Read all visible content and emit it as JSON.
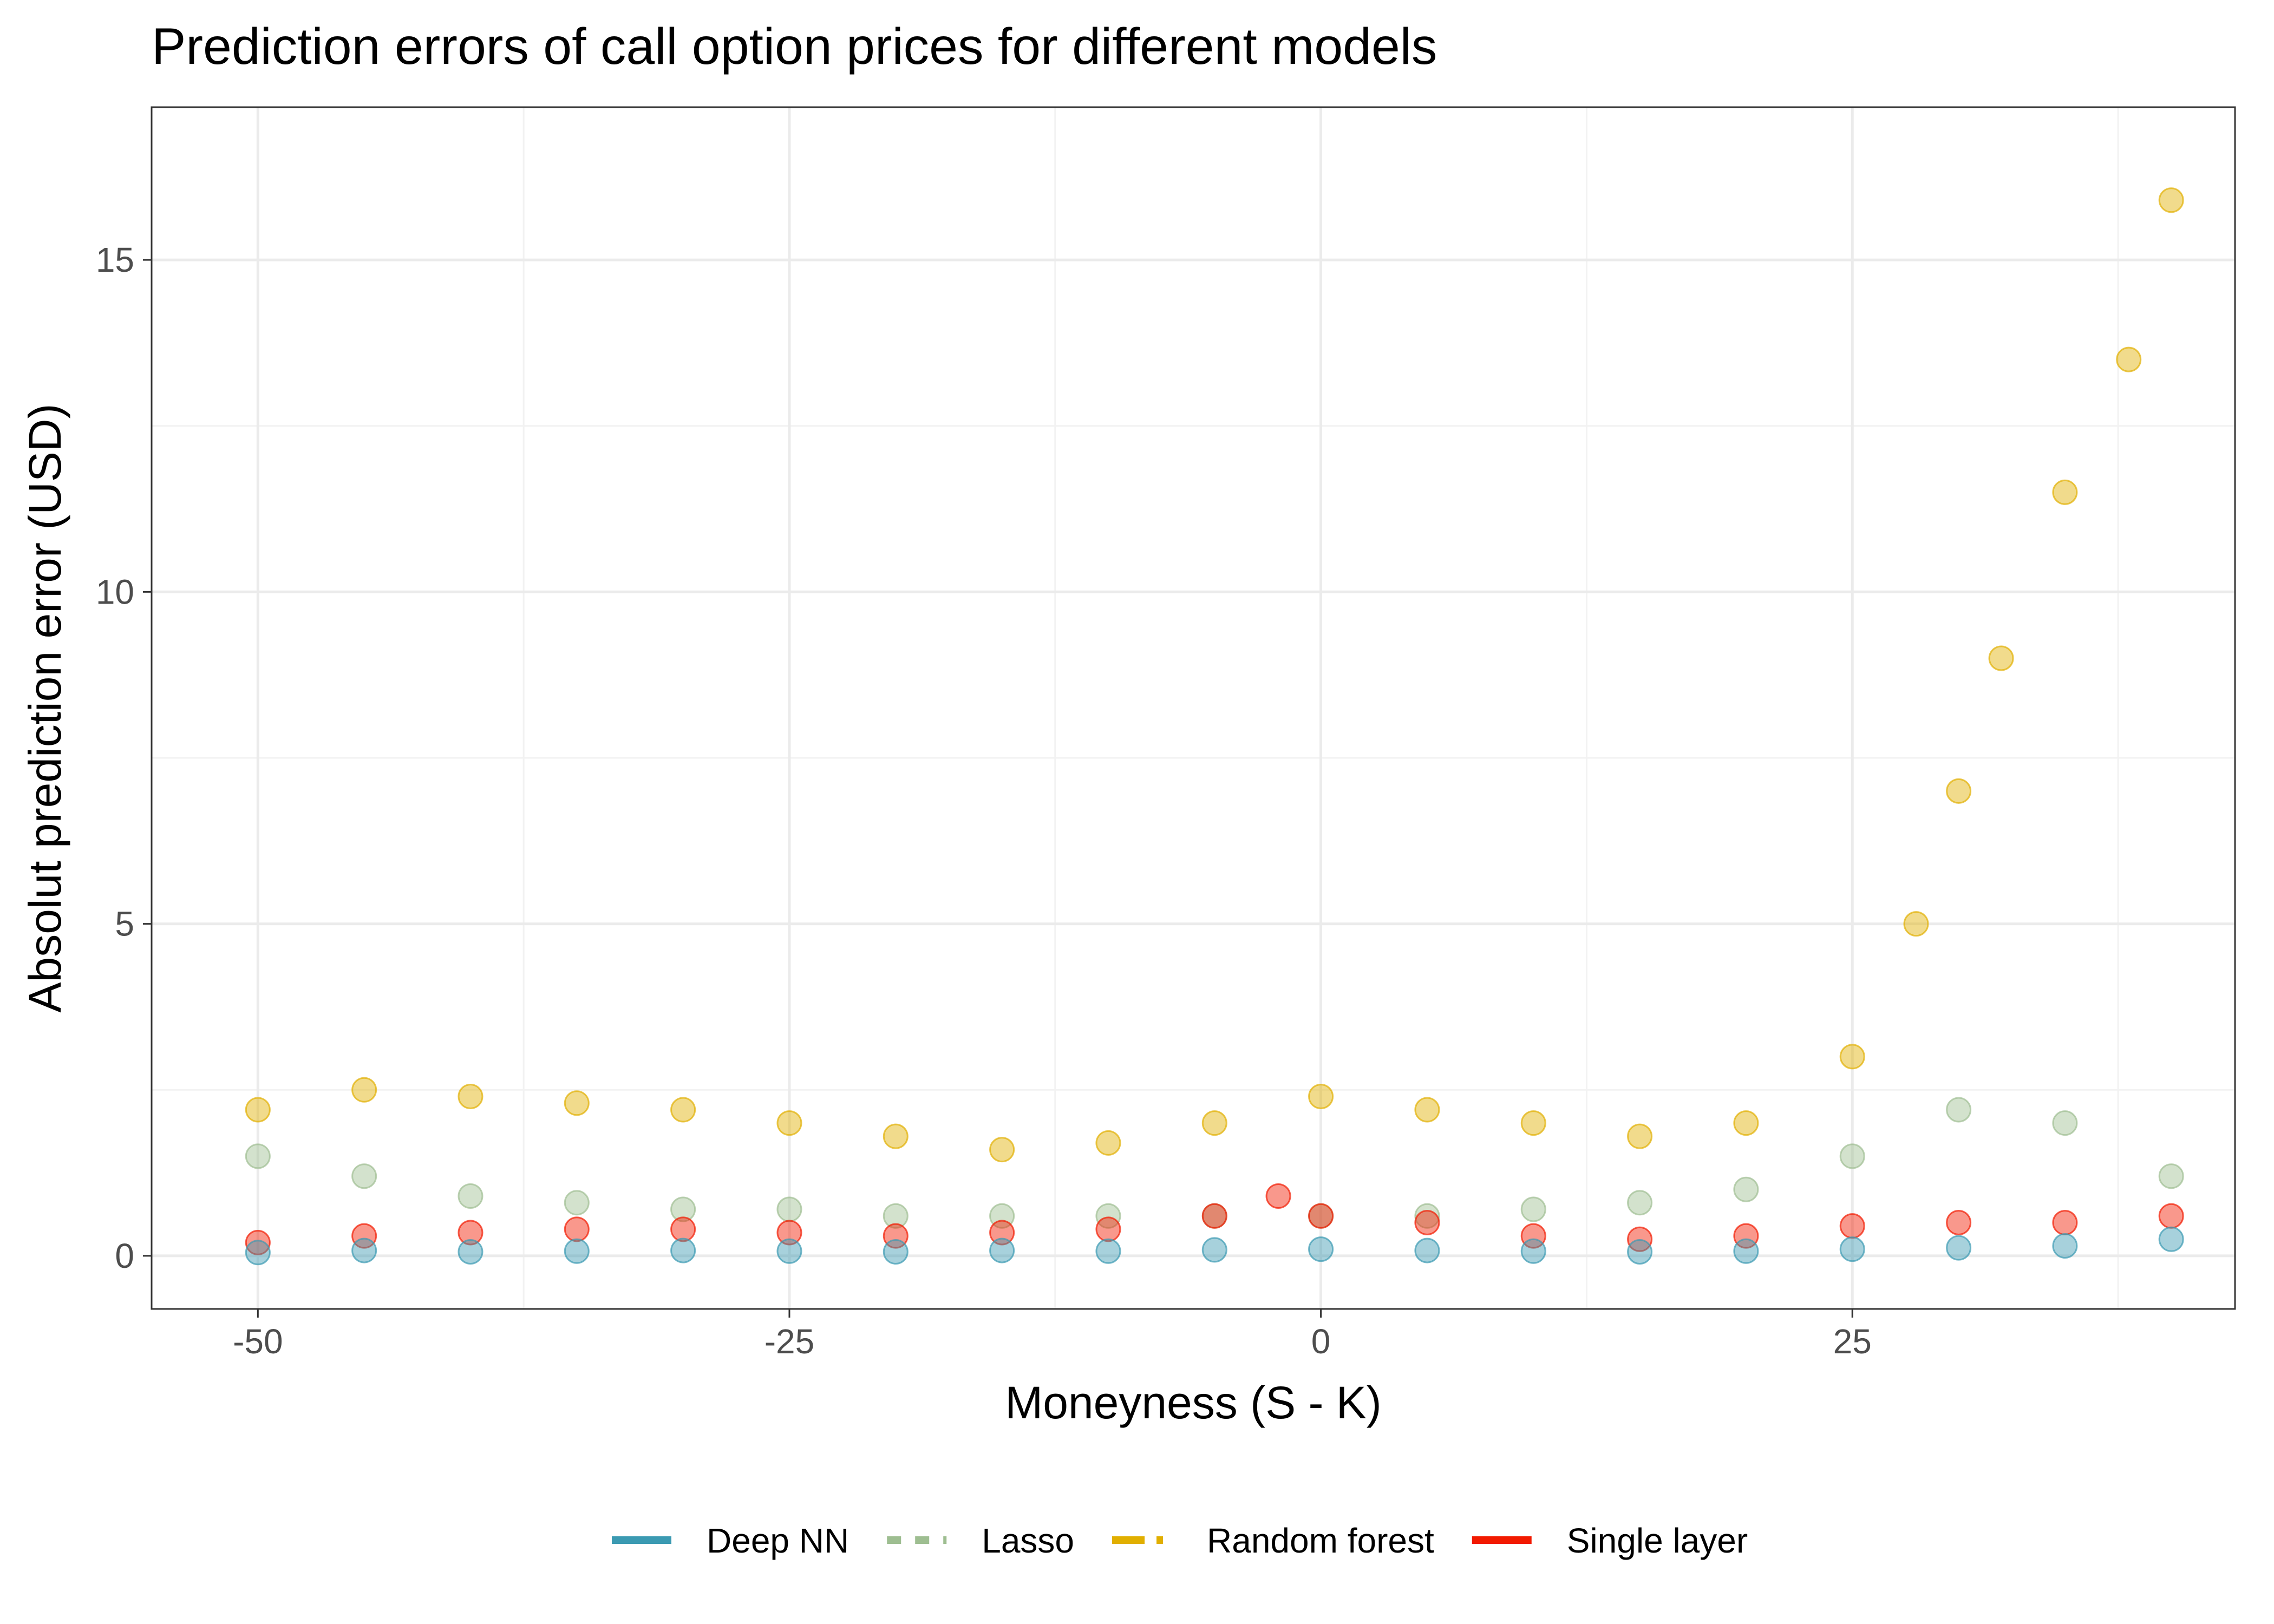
{
  "chart_data": {
    "type": "scatter",
    "title": "Prediction errors of call option prices for different models",
    "xlabel": "Moneyness (S - K)",
    "ylabel": "Absolut prediction error (USD)",
    "xlim": [
      -55,
      43
    ],
    "ylim": [
      -0.8,
      17.3
    ],
    "x_ticks": [
      -50,
      -25,
      0,
      25
    ],
    "x_tick_labels": [
      "-50",
      "-25",
      "0",
      "25"
    ],
    "y_ticks": [
      0,
      5,
      10,
      15
    ],
    "y_tick_labels": [
      "0",
      "5",
      "10",
      "15"
    ],
    "grid": true,
    "legend_position": "bottom",
    "series": [
      {
        "name": "Deep NN",
        "color": "#3B9AB2",
        "line_style": "solid",
        "points": [
          [
            -50,
            0.05
          ],
          [
            -45,
            0.08
          ],
          [
            -40,
            0.06
          ],
          [
            -35,
            0.07
          ],
          [
            -30,
            0.08
          ],
          [
            -25,
            0.07
          ],
          [
            -20,
            0.06
          ],
          [
            -15,
            0.08
          ],
          [
            -10,
            0.07
          ],
          [
            -5,
            0.09
          ],
          [
            0,
            0.1
          ],
          [
            5,
            0.08
          ],
          [
            10,
            0.07
          ],
          [
            15,
            0.06
          ],
          [
            20,
            0.07
          ],
          [
            25,
            0.1
          ],
          [
            30,
            0.12
          ],
          [
            35,
            0.15
          ],
          [
            40,
            0.25
          ]
        ]
      },
      {
        "name": "Lasso",
        "color": "#9EBE91",
        "line_style": "dashed",
        "points": [
          [
            -50,
            1.5
          ],
          [
            -45,
            1.2
          ],
          [
            -40,
            0.9
          ],
          [
            -35,
            0.8
          ],
          [
            -30,
            0.7
          ],
          [
            -25,
            0.7
          ],
          [
            -20,
            0.6
          ],
          [
            -15,
            0.6
          ],
          [
            -10,
            0.6
          ],
          [
            -5,
            0.6
          ],
          [
            0,
            0.6
          ],
          [
            5,
            0.6
          ],
          [
            10,
            0.7
          ],
          [
            15,
            0.8
          ],
          [
            20,
            1.0
          ],
          [
            25,
            1.5
          ],
          [
            30,
            2.2
          ],
          [
            35,
            2.0
          ],
          [
            40,
            1.2
          ]
        ]
      },
      {
        "name": "Random forest",
        "color": "#E1AF00",
        "line_style": "dotdash",
        "points": [
          [
            -50,
            2.2
          ],
          [
            -45,
            2.5
          ],
          [
            -40,
            2.4
          ],
          [
            -35,
            2.3
          ],
          [
            -30,
            2.2
          ],
          [
            -25,
            2.0
          ],
          [
            -20,
            1.8
          ],
          [
            -15,
            1.6
          ],
          [
            -10,
            1.7
          ],
          [
            -5,
            2.0
          ],
          [
            0,
            2.4
          ],
          [
            5,
            2.2
          ],
          [
            10,
            2.0
          ],
          [
            15,
            1.8
          ],
          [
            20,
            2.0
          ],
          [
            25,
            3.0
          ],
          [
            28,
            5.0
          ],
          [
            30,
            7.0
          ],
          [
            32,
            9.0
          ],
          [
            35,
            11.5
          ],
          [
            38,
            13.5
          ],
          [
            40,
            15.9
          ]
        ]
      },
      {
        "name": "Single layer",
        "color": "#F21A00",
        "line_style": "solid",
        "points": [
          [
            -50,
            0.2
          ],
          [
            -45,
            0.3
          ],
          [
            -40,
            0.35
          ],
          [
            -35,
            0.4
          ],
          [
            -30,
            0.4
          ],
          [
            -25,
            0.35
          ],
          [
            -20,
            0.3
          ],
          [
            -15,
            0.35
          ],
          [
            -10,
            0.4
          ],
          [
            -5,
            0.6
          ],
          [
            -2,
            0.9
          ],
          [
            0,
            0.6
          ],
          [
            5,
            0.5
          ],
          [
            10,
            0.3
          ],
          [
            15,
            0.25
          ],
          [
            20,
            0.3
          ],
          [
            25,
            0.45
          ],
          [
            30,
            0.5
          ],
          [
            35,
            0.5
          ],
          [
            40,
            0.6
          ]
        ]
      }
    ]
  }
}
